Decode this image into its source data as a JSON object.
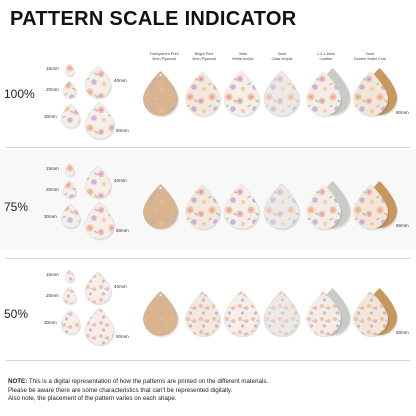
{
  "title": "PATTERN SCALE INDICATOR",
  "columns": [
    {
      "line1": "Transparent Print",
      "line2": "3mm Plywood"
    },
    {
      "line1": "Bright Print",
      "line2": "3mm Plywood"
    },
    {
      "line1": "3mm",
      "line2": "White Acrylic"
    },
    {
      "line1": "3mm",
      "line2": "Clear Acrylic"
    },
    {
      "line1": "1.4-1.8mm",
      "line2": "Leather"
    },
    {
      "line1": "2mm",
      "line2": "Double Sided Cork"
    }
  ],
  "rows": [
    {
      "scale": "100%"
    },
    {
      "scale": "75%"
    },
    {
      "scale": "50%"
    }
  ],
  "size_labels": {
    "s15": "15mm",
    "s20": "20mm",
    "s30": "30mm",
    "s40": "40mm",
    "s50": "50mm",
    "s60": "60mm"
  },
  "note": {
    "label": "NOTE:",
    "line1": "This is a digital representation of how the patterns are printed on the different materials.",
    "line2": "Please be aware there are some characteristics that can't be represented digitally.",
    "line3": "Also note, the placement of the pattern varies on each shape."
  },
  "colors": {
    "plywood": "#d8b58e",
    "white_acrylic": "#f6efe9",
    "clear_acrylic": "#eceae6",
    "leather_back": "#c9cbc6",
    "cork": "#c8975e",
    "floral_peach": "#f0b89a",
    "floral_pink": "#e8a9b2",
    "floral_lilac": "#b9a3d0",
    "leaf_green": "#a6b78a"
  }
}
